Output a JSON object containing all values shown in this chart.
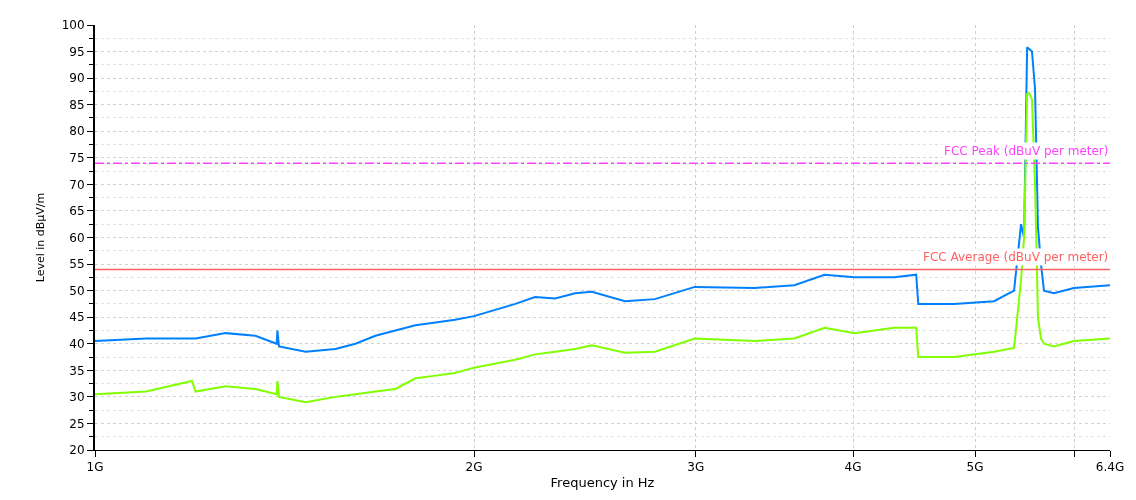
{
  "chart_data": {
    "type": "line",
    "xlabel": "Frequency in Hz",
    "ylabel": "Level in dBµV/m",
    "x": [
      1.0,
      1.098,
      1.194,
      1.202,
      1.27,
      1.341,
      1.394,
      1.396,
      1.4,
      1.47,
      1.552,
      1.61,
      1.67,
      1.732,
      1.797,
      1.864,
      1.932,
      2.0,
      2.157,
      2.236,
      2.32,
      2.406,
      2.481,
      2.636,
      2.784,
      2.995,
      3.342,
      3.593,
      3.797,
      4.011,
      4.314,
      4.49,
      4.507,
      4.814,
      5.177,
      5.37,
      5.439,
      5.469,
      5.5,
      5.52,
      5.549,
      5.58,
      5.61,
      5.641,
      5.672,
      5.776,
      5.991,
      6.4
    ],
    "series": [
      {
        "color": "#0080ff",
        "values": [
          40.5,
          41,
          41,
          41,
          42,
          41.5,
          40,
          42.5,
          39.5,
          38.5,
          39,
          40,
          41.5,
          42.5,
          43.5,
          44,
          44.5,
          45.2,
          47.5,
          48.8,
          48.5,
          49.5,
          49.8,
          48,
          48.4,
          50.7,
          50.5,
          51,
          53,
          52.5,
          52.5,
          53,
          47.5,
          47.5,
          48,
          50,
          62.5,
          60,
          95.8,
          95.5,
          95,
          88,
          62,
          55,
          50,
          49.5,
          50.5,
          51
        ]
      },
      {
        "color": "#80ff00",
        "values": [
          30.5,
          31,
          33,
          31,
          32,
          31.5,
          30.5,
          33,
          30,
          29,
          30,
          30.5,
          31,
          31.5,
          33.5,
          34,
          34.5,
          35.5,
          37,
          38,
          38.5,
          39,
          39.7,
          38.3,
          38.5,
          41,
          40.5,
          41,
          43,
          42,
          43,
          43,
          37.5,
          37.5,
          38.5,
          39.2,
          52,
          60,
          87,
          87.2,
          86,
          70,
          45,
          41,
          40,
          39.5,
          40.5,
          41
        ]
      }
    ],
    "log": "x",
    "xlim": [
      1,
      6.4
    ],
    "xticks": [
      {
        "value": 1,
        "label": "1G"
      },
      {
        "value": 2,
        "label": "2G"
      },
      {
        "value": 3,
        "label": "3G"
      },
      {
        "value": 4,
        "label": "4G"
      },
      {
        "value": 5,
        "label": "5G"
      },
      {
        "value": 6,
        "label": null
      },
      {
        "value": 6.4,
        "label": "6.4G"
      }
    ],
    "ylim": [
      20,
      100
    ],
    "yticks": [
      20,
      25,
      30,
      35,
      40,
      45,
      50,
      55,
      60,
      65,
      70,
      75,
      80,
      85,
      90,
      95,
      100
    ],
    "ref_lines": [
      {
        "axis": "y",
        "value": 74,
        "label": "FCC Peak (dBuV per meter)",
        "color": "#ff40ff",
        "line_style": "dashdot"
      },
      {
        "axis": "y",
        "value": 54,
        "label": "FCC Average (dBuV per meter)",
        "color": "#ff6060",
        "line_style": "solid"
      }
    ],
    "grid": true,
    "marker": "none",
    "line_style": "solid"
  }
}
